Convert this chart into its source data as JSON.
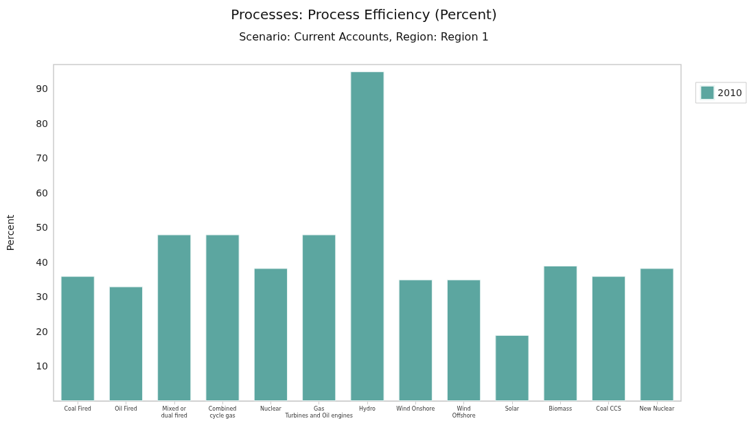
{
  "chart_data": {
    "type": "bar",
    "title": "Processes: Process Efficiency (Percent)",
    "subtitle": "Scenario: Current Accounts, Region: Region 1",
    "ylabel": "Percent",
    "categories": [
      "Coal Fired",
      "Oil Fired",
      "Mixed or\ndual fired",
      "Combined\ncycle gas",
      "Nuclear",
      "Gas\nTurbines and Oil engines",
      "Hydro",
      "Wind Onshore",
      "Wind\nOffshore",
      "Solar",
      "Biomass",
      "Coal CCS",
      "New Nuclear"
    ],
    "series": [
      {
        "name": "2010",
        "color": "#5ca6a0",
        "values": [
          36,
          33,
          48,
          48,
          38.3,
          48,
          95,
          35,
          35,
          19,
          39,
          36,
          38.3
        ]
      }
    ],
    "ylim": [
      0,
      97
    ],
    "yticks": [
      10,
      20,
      30,
      40,
      50,
      60,
      70,
      80,
      90
    ],
    "grid": false,
    "legend": "top right"
  }
}
